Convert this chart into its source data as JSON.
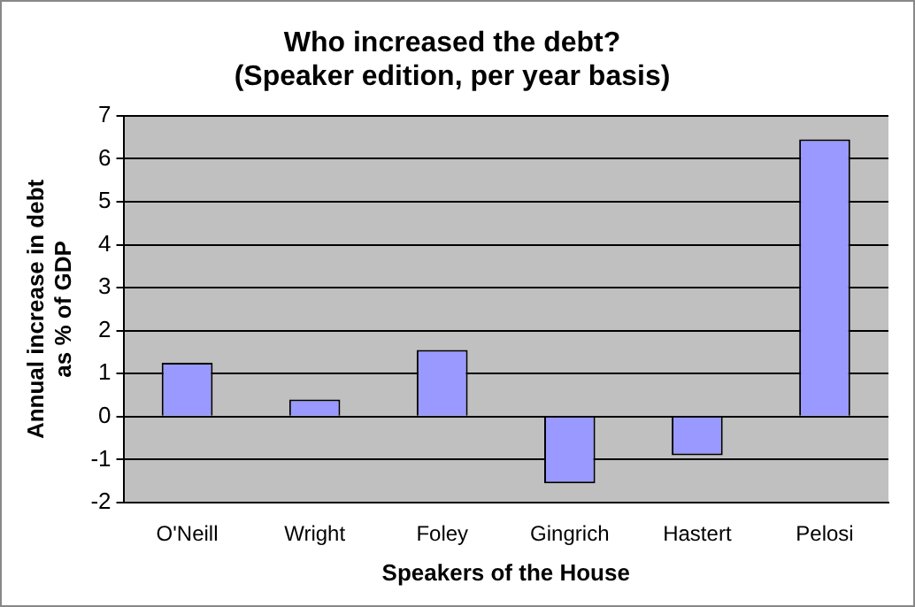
{
  "chart_data": {
    "type": "bar",
    "title": [
      "Who increased the debt?",
      "(Speaker edition, per year basis)"
    ],
    "xlabel": "Speakers of the House",
    "ylabel": [
      "Annual increase in debt",
      "as % of GDP"
    ],
    "categories": [
      "O'Neill",
      "Wright",
      "Foley",
      "Gingrich",
      "Hastert",
      "Pelosi"
    ],
    "values": [
      1.25,
      0.4,
      1.55,
      -1.55,
      -0.9,
      6.45
    ],
    "color": "#9999ff",
    "ylim": [
      -2,
      7
    ],
    "yticks": [
      -2,
      -1,
      0,
      1,
      2,
      3,
      4,
      5,
      6,
      7
    ],
    "grid": "y"
  }
}
